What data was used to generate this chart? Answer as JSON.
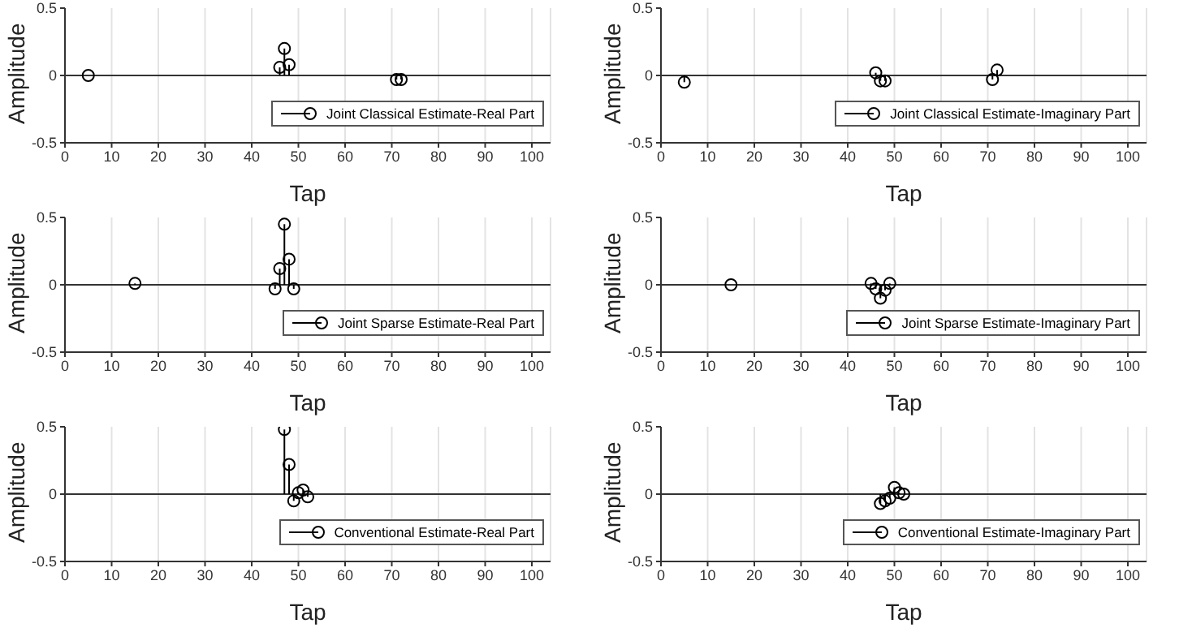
{
  "chart_data": [
    {
      "type": "lollipop",
      "xlabel": "Tap",
      "ylabel": "Amplitude",
      "x": [
        5,
        46,
        47,
        48,
        71,
        72
      ],
      "xlim": [
        0,
        104
      ],
      "xticks": [
        0,
        10,
        20,
        30,
        40,
        50,
        60,
        70,
        80,
        90,
        100
      ],
      "ylim": [
        -0.5,
        0.5
      ],
      "yticks": [
        -0.5,
        0,
        0.5
      ],
      "grid": "x",
      "legend": "bottom right",
      "marker": "circle",
      "line_style": "solid",
      "series": [
        {
          "name": "Joint Classical Estimate-Real Part",
          "color": "#000000",
          "values": [
            0,
            0.06,
            0.2,
            0.08,
            -0.03,
            -0.03
          ]
        }
      ]
    },
    {
      "type": "lollipop",
      "xlabel": "Tap",
      "ylabel": "Amplitude",
      "x": [
        5,
        46,
        47,
        48,
        71,
        72
      ],
      "xlim": [
        0,
        104
      ],
      "xticks": [
        0,
        10,
        20,
        30,
        40,
        50,
        60,
        70,
        80,
        90,
        100
      ],
      "ylim": [
        -0.5,
        0.5
      ],
      "yticks": [
        -0.5,
        0,
        0.5
      ],
      "grid": "x",
      "legend": "bottom right",
      "marker": "circle",
      "line_style": "solid",
      "series": [
        {
          "name": "Joint Classical Estimate-Imaginary Part",
          "color": "#000000",
          "values": [
            -0.05,
            0.02,
            -0.04,
            -0.04,
            -0.03,
            0.04
          ]
        }
      ]
    },
    {
      "type": "lollipop",
      "xlabel": "Tap",
      "ylabel": "Amplitude",
      "x": [
        15,
        45,
        46,
        47,
        48,
        49
      ],
      "xlim": [
        0,
        104
      ],
      "xticks": [
        0,
        10,
        20,
        30,
        40,
        50,
        60,
        70,
        80,
        90,
        100
      ],
      "ylim": [
        -0.5,
        0.5
      ],
      "yticks": [
        -0.5,
        0,
        0.5
      ],
      "grid": "x",
      "legend": "bottom right",
      "marker": "circle",
      "line_style": "solid",
      "series": [
        {
          "name": "Joint Sparse Estimate-Real Part",
          "color": "#000000",
          "values": [
            0.01,
            -0.03,
            0.12,
            0.45,
            0.19,
            -0.03
          ]
        }
      ]
    },
    {
      "type": "lollipop",
      "xlabel": "Tap",
      "ylabel": "Amplitude",
      "x": [
        15,
        45,
        46,
        47,
        48,
        49
      ],
      "xlim": [
        0,
        104
      ],
      "xticks": [
        0,
        10,
        20,
        30,
        40,
        50,
        60,
        70,
        80,
        90,
        100
      ],
      "ylim": [
        -0.5,
        0.5
      ],
      "yticks": [
        -0.5,
        0,
        0.5
      ],
      "grid": "x",
      "legend": "bottom right",
      "marker": "circle",
      "line_style": "solid",
      "series": [
        {
          "name": "Joint Sparse Estimate-Imaginary Part",
          "color": "#000000",
          "values": [
            0,
            0.01,
            -0.03,
            -0.1,
            -0.04,
            0.01
          ]
        }
      ]
    },
    {
      "type": "lollipop",
      "xlabel": "Tap",
      "ylabel": "Amplitude",
      "x": [
        47,
        48,
        49,
        50,
        51,
        52
      ],
      "xlim": [
        0,
        104
      ],
      "xticks": [
        0,
        10,
        20,
        30,
        40,
        50,
        60,
        70,
        80,
        90,
        100
      ],
      "ylim": [
        -0.5,
        0.5
      ],
      "yticks": [
        -0.5,
        0,
        0.5
      ],
      "grid": "x",
      "legend": "bottom right",
      "marker": "circle",
      "line_style": "solid",
      "series": [
        {
          "name": "Conventional Estimate-Real Part",
          "color": "#000000",
          "values": [
            0.48,
            0.22,
            -0.05,
            0.01,
            0.03,
            -0.02
          ]
        }
      ]
    },
    {
      "type": "lollipop",
      "xlabel": "Tap",
      "ylabel": "Amplitude",
      "x": [
        47,
        48,
        49,
        50,
        51,
        52
      ],
      "xlim": [
        0,
        104
      ],
      "xticks": [
        0,
        10,
        20,
        30,
        40,
        50,
        60,
        70,
        80,
        90,
        100
      ],
      "ylim": [
        -0.5,
        0.5
      ],
      "yticks": [
        -0.5,
        0,
        0.5
      ],
      "grid": "x",
      "legend": "bottom right",
      "marker": "circle",
      "line_style": "solid",
      "series": [
        {
          "name": "Conventional Estimate-Imaginary Part",
          "color": "#000000",
          "values": [
            -0.07,
            -0.05,
            -0.03,
            0.05,
            0.01,
            0
          ]
        }
      ]
    }
  ]
}
